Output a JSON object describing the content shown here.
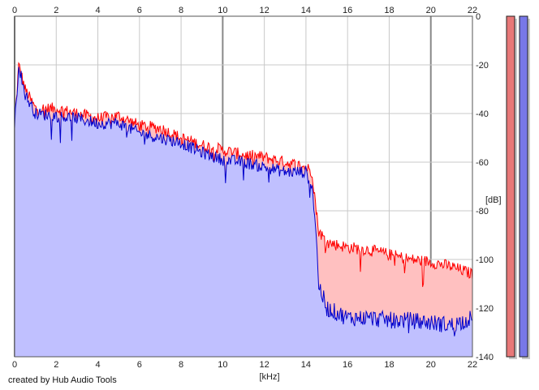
{
  "chart_data": {
    "type": "area",
    "xlabel": "[kHz]",
    "ylabel": "[dB]",
    "xlim": [
      0,
      22
    ],
    "ylim": [
      -140,
      0
    ],
    "x_ticks": [
      0,
      2,
      4,
      6,
      8,
      10,
      12,
      14,
      16,
      18,
      20,
      22
    ],
    "x_tick_labels": [
      "0",
      "2",
      "4",
      "6",
      "8",
      "10",
      "12",
      "14",
      "16",
      "18",
      "20",
      "22"
    ],
    "y_ticks": [
      0,
      -20,
      -40,
      -60,
      -80,
      -100,
      -120,
      -140
    ],
    "y_tick_labels": [
      "0",
      "-20",
      "-40",
      "-60",
      "-80",
      "-100",
      "-120",
      "-140"
    ],
    "grid": true,
    "series": [
      {
        "color_line": "#ff0000",
        "color_fill": "#ffc0c0",
        "x": [
          0,
          0.2,
          0.5,
          1,
          2,
          3,
          4,
          5,
          6,
          7,
          8,
          9,
          10,
          11,
          12,
          13,
          14,
          14.3,
          14.5,
          14.6,
          15,
          16,
          17,
          18,
          19,
          20,
          21,
          22
        ],
        "y": [
          -45,
          -20,
          -30,
          -38,
          -38,
          -40,
          -42,
          -41,
          -45,
          -46,
          -50,
          -53,
          -55,
          -57,
          -58,
          -60,
          -62,
          -64,
          -80,
          -88,
          -93,
          -95,
          -96,
          -98,
          -100,
          -101,
          -103,
          -106
        ]
      },
      {
        "color_line": "#0000cc",
        "color_fill": "#c0c0ff",
        "x": [
          0,
          0.2,
          0.5,
          1,
          2,
          3,
          4,
          5,
          6,
          7,
          8,
          9,
          10,
          11,
          12,
          13,
          14,
          14.3,
          14.5,
          14.6,
          15,
          16,
          17,
          18,
          19,
          20,
          21,
          22
        ],
        "y": [
          -45,
          -20,
          -32,
          -40,
          -41,
          -42,
          -44,
          -44,
          -48,
          -50,
          -52,
          -56,
          -59,
          -60,
          -62,
          -64,
          -64,
          -70,
          -90,
          -110,
          -120,
          -124,
          -124,
          -125,
          -125,
          -126,
          -127,
          -124
        ]
      }
    ],
    "level_meters": [
      {
        "color": "#e87878",
        "level_db": -140
      },
      {
        "color": "#7878e8",
        "level_db": -140
      }
    ]
  },
  "footer": {
    "credit": "created by Hub Audio Tools"
  }
}
